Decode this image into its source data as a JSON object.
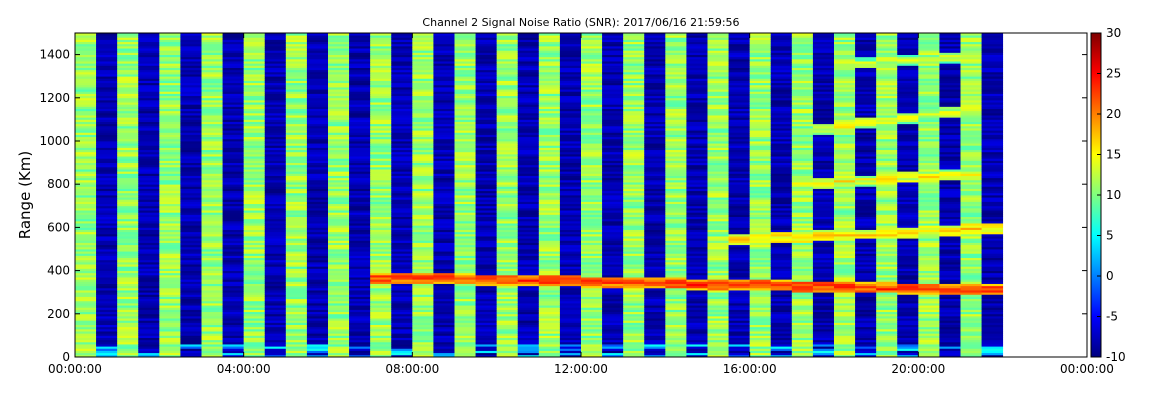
{
  "chart_data": {
    "type": "heatmap",
    "title": "Channel 2 Signal Noise Ratio (SNR): 2017/06/16 21:59:56",
    "xlabel": "",
    "ylabel": "Range (Km)",
    "x_ticks": [
      "00:00:00",
      "04:00:00",
      "08:00:00",
      "12:00:00",
      "16:00:00",
      "20:00:00",
      "00:00:00"
    ],
    "x_range_hours": [
      0,
      24
    ],
    "data_end_hours": 22.0,
    "y_ticks": [
      0,
      200,
      400,
      600,
      800,
      1000,
      1200,
      1400
    ],
    "ylim": [
      0,
      1500
    ],
    "colorbar": {
      "colormap": "jet",
      "range": [
        -10,
        30
      ],
      "ticks": [
        -10,
        -5,
        0,
        5,
        10,
        15,
        20,
        25,
        30
      ]
    },
    "grid": false,
    "features": [
      {
        "name": "lower layer",
        "hours": [
          6.8,
          22.0
        ],
        "range_km": [
          370,
          310
        ],
        "snr": 20
      },
      {
        "name": "upper layer",
        "hours": [
          15.5,
          22.0
        ],
        "range_km": [
          540,
          600
        ],
        "snr": 14
      },
      {
        "name": "upper layer 2",
        "hours": [
          17.0,
          21.5
        ],
        "range_km": [
          800,
          850
        ],
        "snr": 12
      },
      {
        "name": "upper layer 3",
        "hours": [
          17.5,
          21.5
        ],
        "range_km": [
          1050,
          1150
        ],
        "snr": 11
      },
      {
        "name": "upper layer 4",
        "hours": [
          18.0,
          21.5
        ],
        "range_km": [
          1350,
          1400
        ],
        "snr": 10
      }
    ]
  }
}
